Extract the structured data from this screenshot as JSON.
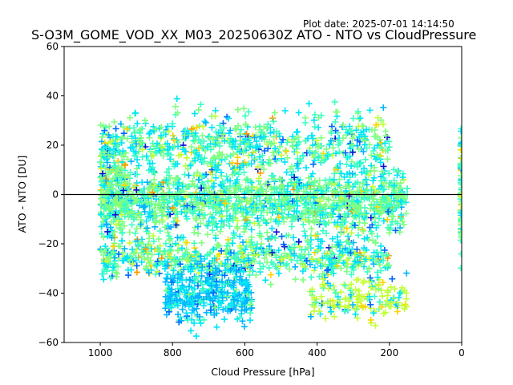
{
  "chart_data": {
    "type": "scatter",
    "title": "S-O3M_GOME_VOD_XX_M03_20250630Z ATO - NTO vs CloudPressure",
    "plot_date": "Plot date: 2025-07-01 14:14:50",
    "xlabel": "Cloud Pressure [hPa]",
    "ylabel": "ATO - NTO [DU]",
    "xlim": [
      1100,
      0
    ],
    "ylim": [
      -60,
      60
    ],
    "x_ticks": [
      1000,
      800,
      600,
      400,
      200,
      0
    ],
    "y_ticks": [
      -60,
      -40,
      -20,
      0,
      20,
      40,
      60
    ],
    "x_tick_labels": [
      "1000",
      "800",
      "600",
      "400",
      "200",
      "0"
    ],
    "y_tick_labels": [
      "−60",
      "−40",
      "−20",
      "0",
      "20",
      "40",
      "60"
    ],
    "reference_line_y": 0,
    "marker": "+",
    "grid": false,
    "legend": "none",
    "colors": [
      "#80ff80",
      "#3cffc3",
      "#00e4f8",
      "#00b4ff",
      "#0068ff",
      "#1010d8",
      "#c4ff34",
      "#ffd300",
      "#ff9900"
    ],
    "clusters": [
      {
        "x_range": [
          1000,
          150
        ],
        "y_center": -3,
        "y_spread": 11,
        "weights": [
          0.42,
          0.3,
          0.16,
          0.04,
          0.02,
          0.01,
          0.03,
          0.01,
          0.01
        ]
      },
      {
        "x_range": [
          1000,
          200
        ],
        "y_center": 20,
        "y_spread": 12,
        "weights": [
          0.25,
          0.25,
          0.3,
          0.05,
          0.03,
          0.02,
          0.05,
          0.03,
          0.02
        ]
      },
      {
        "x_range": [
          1000,
          200
        ],
        "y_center": -25,
        "y_spread": 8,
        "weights": [
          0.25,
          0.3,
          0.2,
          0.07,
          0.03,
          0.02,
          0.08,
          0.03,
          0.02
        ]
      },
      {
        "x_range": [
          820,
          580
        ],
        "y_center": -40,
        "y_spread": 11,
        "weights": [
          0.05,
          0.15,
          0.3,
          0.45,
          0.05,
          0.0,
          0.0,
          0.0,
          0.0
        ]
      },
      {
        "x_range": [
          420,
          150
        ],
        "y_center": -42,
        "y_spread": 8,
        "weights": [
          0.05,
          0.1,
          0.1,
          0.05,
          0.03,
          0.0,
          0.6,
          0.07,
          0.0
        ]
      },
      {
        "x_range": [
          1000,
          930
        ],
        "y_center": 5,
        "y_spread": 18,
        "weights": [
          0.4,
          0.2,
          0.1,
          0.05,
          0.05,
          0.05,
          0.05,
          0.07,
          0.03
        ]
      },
      {
        "x_range": [
          3,
          0
        ],
        "y_center": 0,
        "y_spread": 22,
        "weights": [
          0.3,
          0.2,
          0.2,
          0.05,
          0.0,
          0.0,
          0.15,
          0.1,
          0.0
        ]
      }
    ]
  }
}
